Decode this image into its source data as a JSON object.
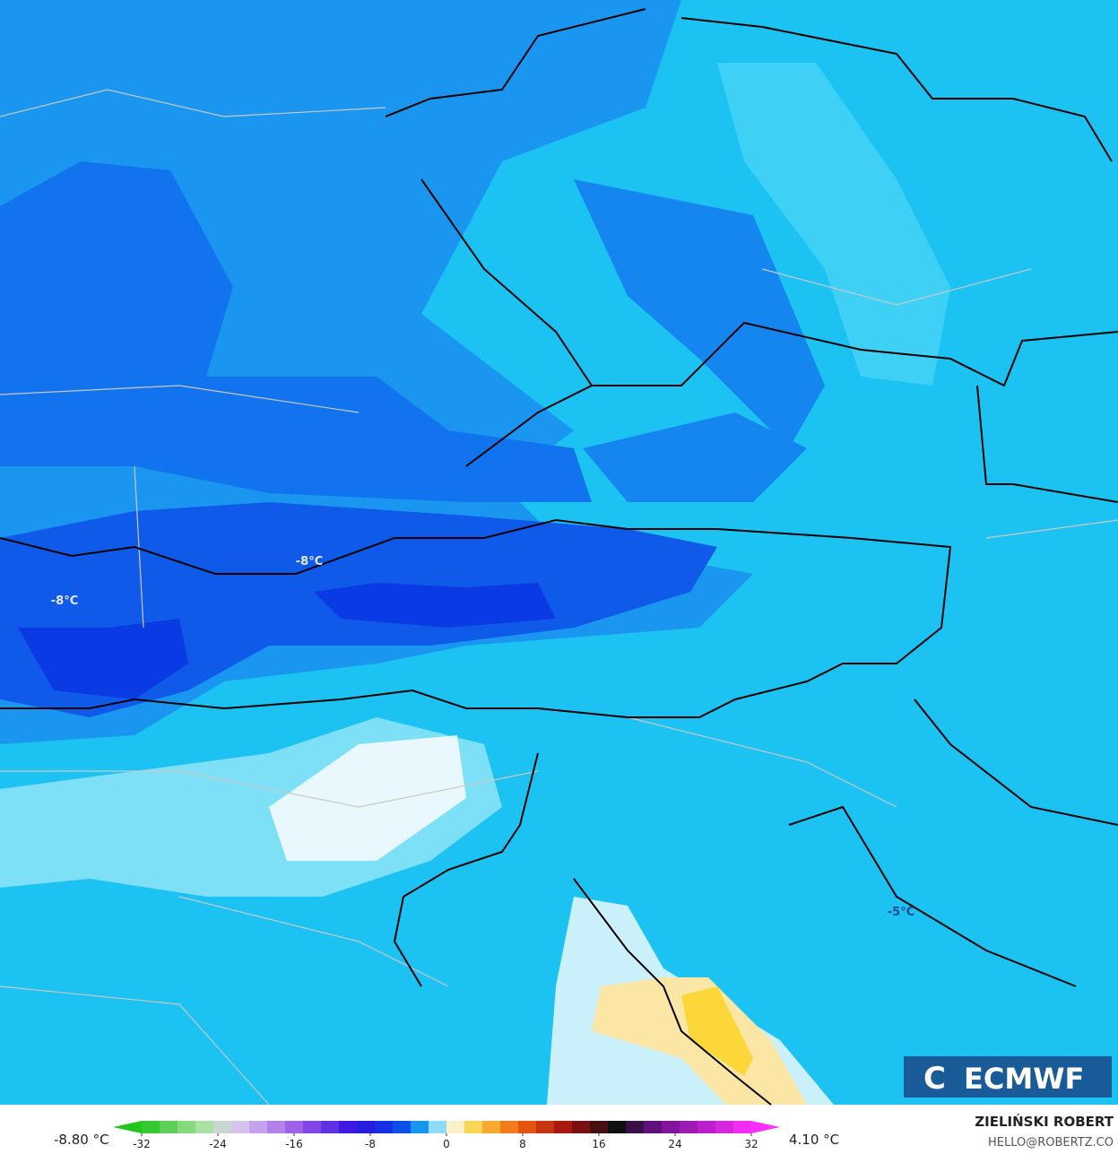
{
  "map": {
    "labels": [
      "-8°C",
      "-8°C",
      "-5°C"
    ],
    "logo": "ECMWF"
  },
  "legend": {
    "min_label": "-8.80 °C",
    "max_label": "4.10 °C",
    "ticks": [
      -32,
      -24,
      -16,
      -8,
      0,
      8,
      16,
      24,
      32
    ]
  },
  "credit": {
    "name": "ZIELIŃSKI ROBERT",
    "email": "HELLO@ROBERTZ.CO"
  }
}
